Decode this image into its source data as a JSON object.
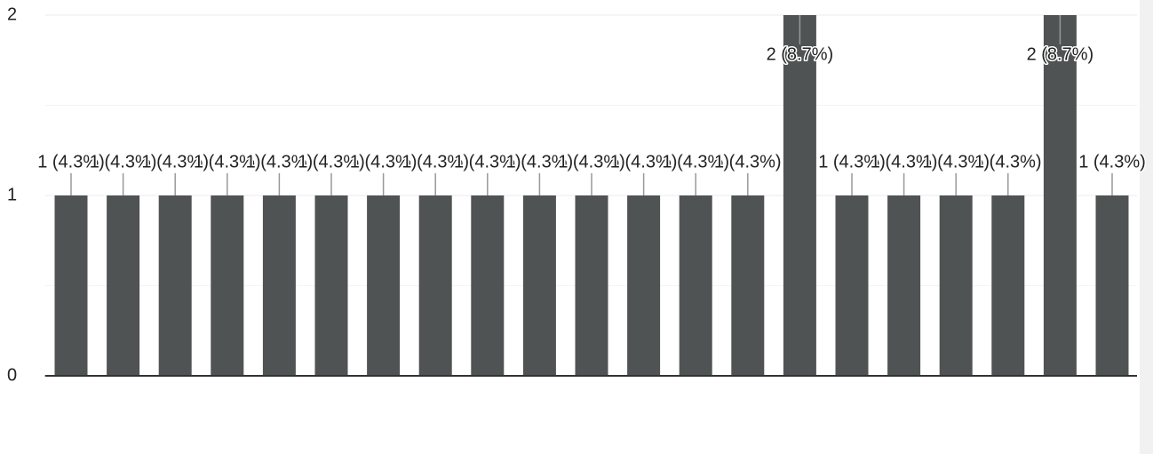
{
  "chart_data": {
    "type": "bar",
    "categories": [
      null,
      null,
      null,
      null,
      null,
      null,
      null,
      null,
      null,
      null,
      null,
      null,
      null,
      null,
      null,
      null,
      null,
      null,
      null,
      null,
      null
    ],
    "values": [
      1,
      1,
      1,
      1,
      1,
      1,
      1,
      1,
      1,
      1,
      1,
      1,
      1,
      1,
      2,
      1,
      1,
      1,
      1,
      2,
      1
    ],
    "value_labels": [
      "1 (4.3%)",
      "1 (4.3%)",
      "1 (4.3%)",
      "1 (4.3%)",
      "1 (4.3%)",
      "1 (4.3%)",
      "1 (4.3%)",
      "1 (4.3%)",
      "1 (4.3%)",
      "1 (4.3%)",
      "1 (4.3%)",
      "1 (4.3%)",
      "1 (4.3%)",
      "1 (4.3%)",
      "2 (8.7%)",
      "1 (4.3%)",
      "1 (4.3%)",
      "1 (4.3%)",
      "1 (4.3%)",
      "2 (8.7%)",
      "1 (4.3%)"
    ],
    "color": "#505353",
    "ylim": [
      0,
      2
    ],
    "yticks": [
      0,
      1,
      2
    ],
    "grid": true
  }
}
